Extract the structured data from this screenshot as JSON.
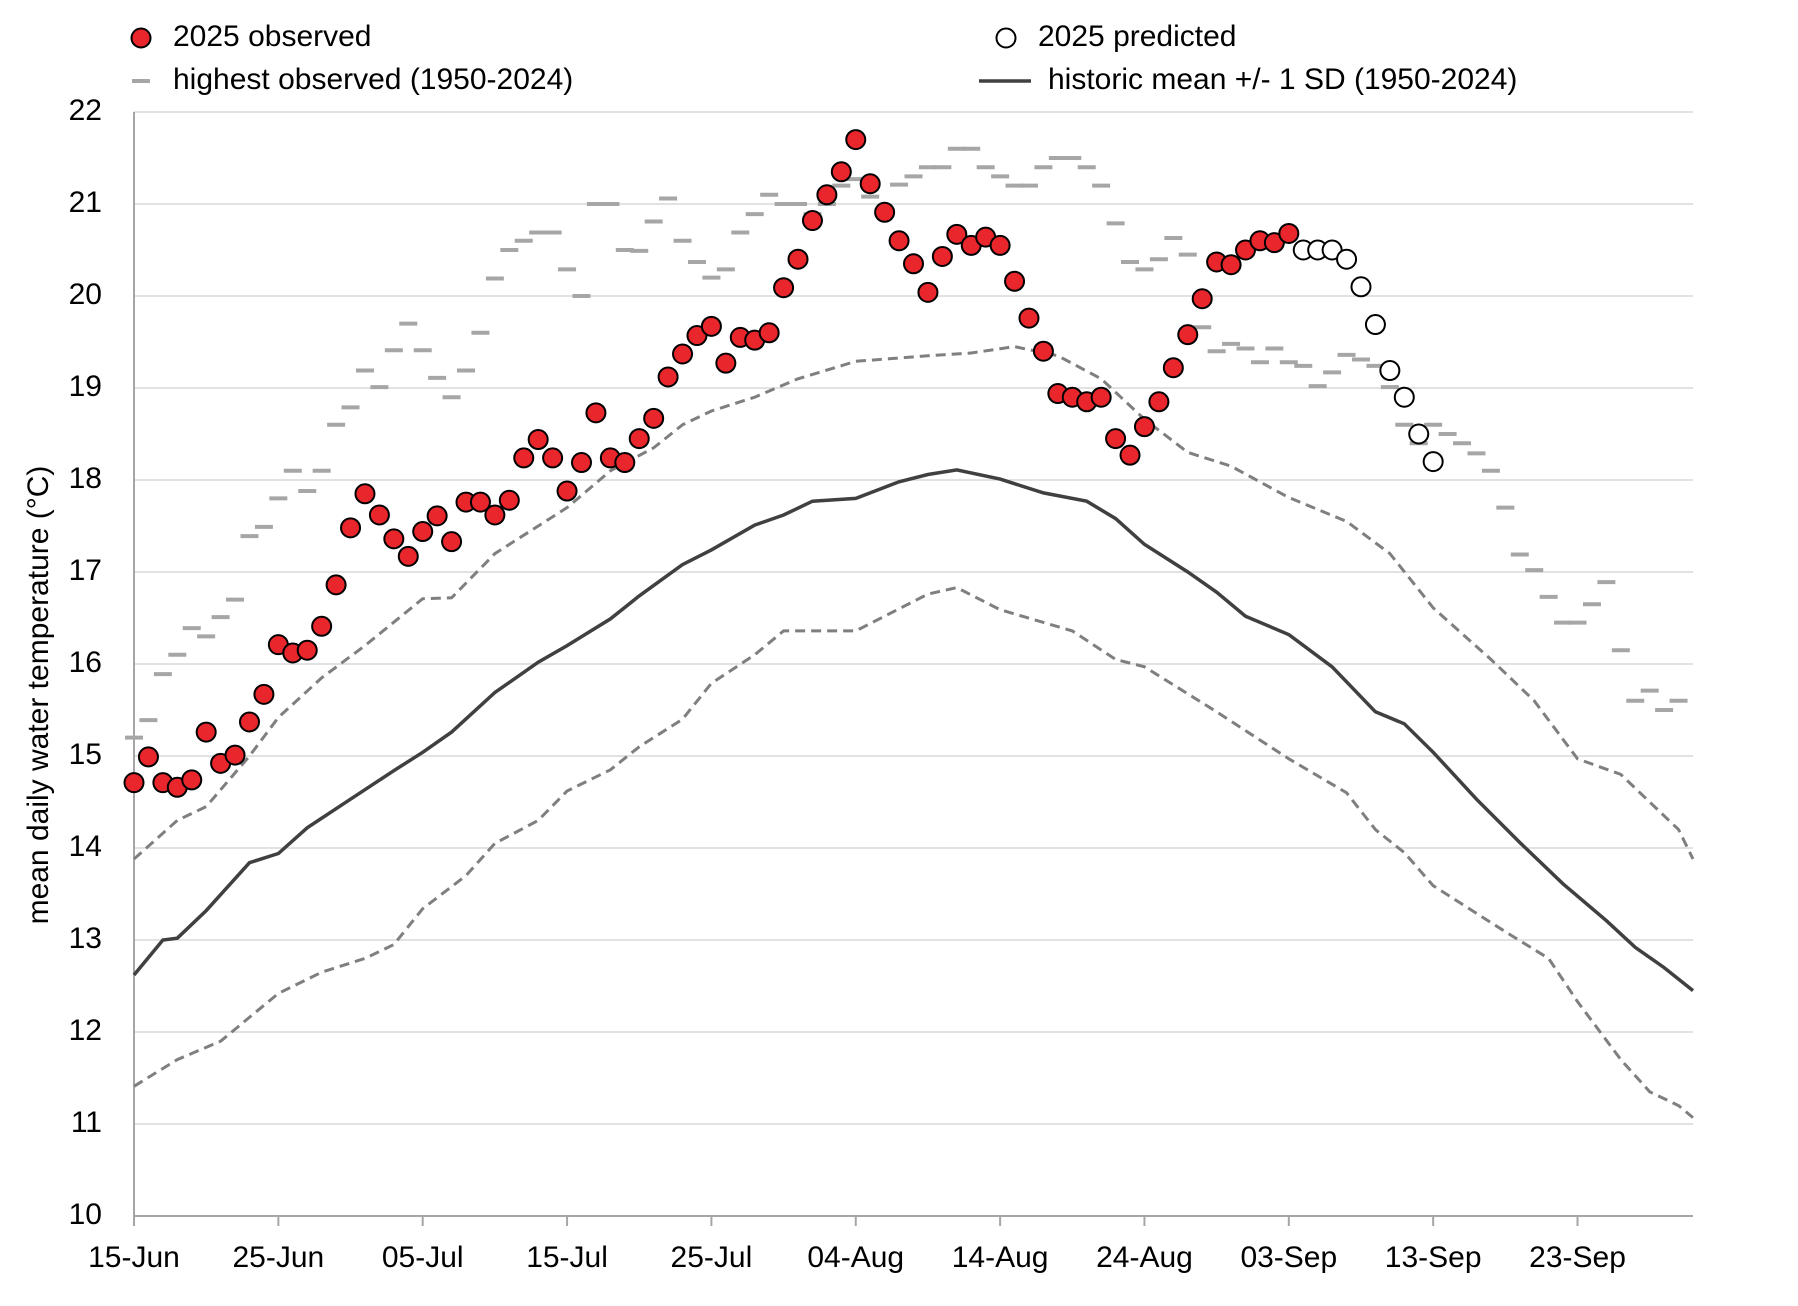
{
  "chart_data": {
    "type": "line",
    "y_label": "mean daily water temperature (°C)",
    "xlim": [
      0,
      108
    ],
    "ylim": [
      10,
      22
    ],
    "yticks": [
      10,
      11,
      12,
      13,
      14,
      15,
      16,
      17,
      18,
      19,
      20,
      21,
      22
    ],
    "xticks": [
      {
        "value": 0,
        "label": "15-Jun"
      },
      {
        "value": 10,
        "label": "25-Jun"
      },
      {
        "value": 20,
        "label": "05-Jul"
      },
      {
        "value": 30,
        "label": "15-Jul"
      },
      {
        "value": 40,
        "label": "25-Jul"
      },
      {
        "value": 50,
        "label": "04-Aug"
      },
      {
        "value": 60,
        "label": "14-Aug"
      },
      {
        "value": 70,
        "label": "24-Aug"
      },
      {
        "value": 80,
        "label": "03-Sep"
      },
      {
        "value": 90,
        "label": "13-Sep"
      },
      {
        "value": 100,
        "label": "23-Sep"
      }
    ],
    "grid": true,
    "series": [
      {
        "name": "2025 observed",
        "style": "circle",
        "color": "#e8262b",
        "x": [
          0,
          1,
          2,
          3,
          4,
          5,
          6,
          7,
          8,
          9,
          10,
          11,
          12,
          13,
          14,
          15,
          16,
          17,
          18,
          19,
          20,
          21,
          22,
          23,
          24,
          25,
          26,
          27,
          28,
          29,
          30,
          31,
          32,
          33,
          34,
          35,
          36,
          37,
          38,
          39,
          40,
          41,
          42,
          43,
          44,
          45,
          46,
          47,
          48,
          49,
          50,
          51,
          52,
          53,
          54,
          55,
          56,
          57,
          58,
          59,
          60,
          61,
          62,
          63,
          64,
          65,
          66,
          67,
          68,
          69,
          70,
          71,
          72,
          73,
          74,
          75,
          76,
          77,
          78,
          79,
          80
        ],
        "values": [
          14.71,
          14.99,
          14.71,
          14.66,
          14.74,
          15.26,
          14.92,
          15.01,
          15.37,
          15.67,
          16.21,
          16.12,
          16.15,
          16.41,
          16.86,
          17.48,
          17.85,
          17.62,
          17.36,
          17.17,
          17.44,
          17.61,
          17.33,
          17.76,
          17.76,
          17.62,
          17.78,
          18.24,
          18.44,
          18.24,
          17.88,
          18.19,
          18.73,
          18.24,
          18.19,
          18.45,
          18.67,
          19.12,
          19.37,
          19.57,
          19.67,
          19.27,
          19.55,
          19.52,
          19.6,
          20.09,
          20.4,
          20.82,
          21.1,
          21.35,
          21.7,
          21.22,
          20.91,
          20.6,
          20.35,
          20.04,
          20.43,
          20.67,
          20.55,
          20.64,
          20.55,
          20.16,
          19.76,
          19.4,
          18.94,
          18.9,
          18.85,
          18.9,
          18.45,
          18.27,
          18.58,
          18.85,
          19.22,
          19.58,
          19.97,
          20.37,
          20.34,
          20.5,
          20.6,
          20.58,
          20.68
        ]
      },
      {
        "name": "2025 predicted",
        "style": "circle",
        "color": "#ffffff",
        "x": [
          81,
          82,
          83,
          84,
          85,
          86,
          87,
          88,
          89,
          90
        ],
        "values": [
          20.5,
          20.5,
          20.5,
          20.4,
          20.1,
          19.69,
          19.19,
          18.9,
          18.5,
          18.2
        ]
      },
      {
        "name": "highest observed (1950-2024)",
        "style": "dash",
        "color": "#a6a6a6",
        "x": [
          0,
          1,
          2,
          3,
          4,
          5,
          6,
          7,
          8,
          9,
          10,
          11,
          12,
          13,
          14,
          15,
          16,
          17,
          18,
          19,
          20,
          21,
          22,
          23,
          24,
          25,
          26,
          27,
          28,
          29,
          30,
          31,
          32,
          33,
          34,
          35,
          36,
          37,
          38,
          39,
          40,
          41,
          42,
          43,
          44,
          45,
          46,
          47,
          48,
          49,
          50,
          51,
          52,
          53,
          54,
          55,
          56,
          57,
          58,
          59,
          60,
          61,
          62,
          63,
          64,
          65,
          66,
          67,
          68,
          69,
          70,
          71,
          72,
          73,
          74,
          75,
          76,
          77,
          78,
          79,
          80,
          81,
          82,
          83,
          84,
          85,
          86,
          87,
          88,
          89,
          90,
          91,
          92,
          93,
          94,
          95,
          96,
          97,
          98,
          99,
          100,
          101,
          102,
          103,
          104,
          105,
          106,
          107
        ],
        "values": [
          15.2,
          15.39,
          15.89,
          16.1,
          16.39,
          16.3,
          16.51,
          16.7,
          17.39,
          17.49,
          17.8,
          18.1,
          17.88,
          18.1,
          18.6,
          18.79,
          19.19,
          19.01,
          19.41,
          19.7,
          19.41,
          19.11,
          18.9,
          19.19,
          19.6,
          20.19,
          20.5,
          20.6,
          20.69,
          20.69,
          20.29,
          20.0,
          21.0,
          21.0,
          20.5,
          20.49,
          20.81,
          21.06,
          20.6,
          20.37,
          20.2,
          20.29,
          20.69,
          20.89,
          21.1,
          21.0,
          21.0,
          20.89,
          21.0,
          21.2,
          21.27,
          21.08,
          20.89,
          21.21,
          21.3,
          21.4,
          21.4,
          21.6,
          21.6,
          21.4,
          21.3,
          21.2,
          21.2,
          21.4,
          21.5,
          21.5,
          21.4,
          21.2,
          20.79,
          20.37,
          20.29,
          20.4,
          20.63,
          20.45,
          19.66,
          19.4,
          19.48,
          19.43,
          19.28,
          19.43,
          19.28,
          19.24,
          19.02,
          19.17,
          19.36,
          19.31,
          19.24,
          19.01,
          18.6,
          18.4,
          18.6,
          18.5,
          18.4,
          18.29,
          18.1,
          17.7,
          17.19,
          17.02,
          16.73,
          16.45,
          16.45,
          16.65,
          16.89,
          16.15,
          15.6,
          15.71,
          15.5,
          15.6
        ]
      },
      {
        "name": "historic mean +/- 1 SD (1950-2024)",
        "style": "line",
        "color": "#404040",
        "x": [
          0,
          2,
          3,
          5,
          8,
          10,
          12,
          15,
          18,
          20,
          22,
          25,
          28,
          30,
          33,
          35,
          38,
          40,
          43,
          45,
          47,
          50,
          53,
          55,
          57,
          60,
          63,
          66,
          68,
          70,
          73,
          75,
          77,
          80,
          83,
          86,
          88,
          90,
          93,
          96,
          99,
          102,
          104,
          106,
          108
        ],
        "values": [
          12.62,
          13.0,
          13.02,
          13.32,
          13.84,
          13.94,
          14.22,
          14.53,
          14.84,
          15.04,
          15.26,
          15.69,
          16.02,
          16.2,
          16.49,
          16.74,
          17.08,
          17.24,
          17.51,
          17.62,
          17.77,
          17.8,
          17.98,
          18.06,
          18.11,
          18.01,
          17.86,
          17.77,
          17.58,
          17.3,
          17.0,
          16.78,
          16.52,
          16.32,
          15.97,
          15.48,
          15.35,
          15.04,
          14.53,
          14.06,
          13.61,
          13.21,
          12.92,
          12.7,
          12.45
        ]
      },
      {
        "style": "dashed-line",
        "color": "#7f7f7f",
        "x": [
          0,
          3,
          5,
          8,
          10,
          13,
          16,
          20,
          22,
          25,
          28,
          30,
          33,
          36,
          38,
          40,
          43,
          46,
          50,
          55,
          58,
          61,
          64,
          67,
          70,
          73,
          76,
          80,
          84,
          87,
          90,
          94,
          97,
          100,
          103,
          106,
          107,
          108
        ],
        "values": [
          13.88,
          14.3,
          14.45,
          15.0,
          15.42,
          15.85,
          16.2,
          16.71,
          16.72,
          17.2,
          17.5,
          17.7,
          18.1,
          18.35,
          18.6,
          18.75,
          18.9,
          19.1,
          19.29,
          19.35,
          19.38,
          19.45,
          19.35,
          19.1,
          18.66,
          18.3,
          18.15,
          17.81,
          17.55,
          17.2,
          16.61,
          16.05,
          15.6,
          14.97,
          14.8,
          14.35,
          14.2,
          13.88
        ]
      },
      {
        "style": "dashed-line",
        "color": "#7f7f7f",
        "x": [
          0,
          3,
          6,
          10,
          13,
          16,
          18,
          20,
          23,
          25,
          28,
          30,
          33,
          35,
          38,
          40,
          43,
          45,
          50,
          55,
          57,
          60,
          65,
          68,
          70,
          75,
          80,
          84,
          86,
          88,
          90,
          95,
          98,
          100,
          103,
          105,
          107,
          108
        ],
        "values": [
          11.41,
          11.7,
          11.9,
          12.42,
          12.65,
          12.8,
          12.95,
          13.34,
          13.7,
          14.05,
          14.3,
          14.62,
          14.85,
          15.1,
          15.4,
          15.79,
          16.1,
          16.36,
          16.36,
          16.76,
          16.83,
          16.59,
          16.36,
          16.05,
          15.97,
          15.48,
          14.97,
          14.6,
          14.2,
          13.95,
          13.59,
          13.09,
          12.8,
          12.33,
          11.7,
          11.35,
          11.2,
          11.07
        ]
      }
    ]
  }
}
